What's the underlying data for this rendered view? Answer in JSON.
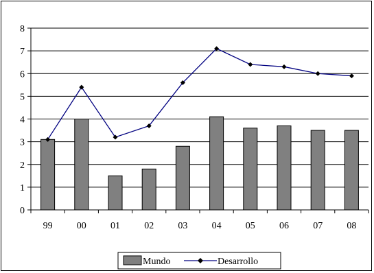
{
  "chart_data": {
    "type": "bar",
    "categories": [
      "99",
      "00",
      "01",
      "02",
      "03",
      "04",
      "05",
      "06",
      "07",
      "08"
    ],
    "series": [
      {
        "name": "Mundo",
        "type": "bar",
        "values": [
          3.1,
          4.0,
          1.5,
          1.8,
          2.8,
          4.1,
          3.6,
          3.7,
          3.5,
          3.5
        ],
        "color": "#808080"
      },
      {
        "name": "Desarrollo",
        "type": "line",
        "values": [
          3.1,
          5.4,
          3.2,
          3.7,
          5.6,
          7.1,
          6.4,
          6.3,
          6.0,
          5.9
        ],
        "color": "#000080"
      }
    ],
    "ylim": [
      0,
      8
    ],
    "yticks": [
      "0",
      "1",
      "2",
      "3",
      "4",
      "5",
      "6",
      "7",
      "8"
    ],
    "grid": true,
    "legend_position": "bottom"
  }
}
